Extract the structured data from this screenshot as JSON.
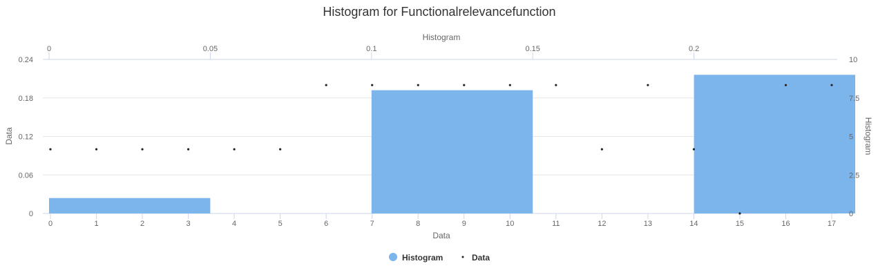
{
  "chart_data": {
    "type": "bar",
    "title": "Histogram for Functionalrelevancefunction",
    "colors": {
      "histogram": "#7cb5ec",
      "data": "#222222",
      "grid": "#e6e6e6",
      "axis": "#ccd6eb"
    },
    "axes": {
      "x_bottom": {
        "label": "Data",
        "range": [
          0,
          17
        ],
        "ticks": [
          "0",
          "1",
          "2",
          "3",
          "4",
          "5",
          "6",
          "7",
          "8",
          "9",
          "10",
          "11",
          "12",
          "13",
          "14",
          "15",
          "16",
          "17"
        ]
      },
      "x_top": {
        "label": "Histogram",
        "range": [
          0,
          0.25
        ],
        "ticks": [
          "0",
          "0.05",
          "0.1",
          "0.15",
          "0.2"
        ]
      },
      "y_left": {
        "label": "Data",
        "range": [
          0,
          0.24
        ],
        "ticks": [
          "0",
          "0.06",
          "0.12",
          "0.18",
          "0.24"
        ]
      },
      "y_right": {
        "label": "Histogram",
        "range": [
          0,
          10
        ],
        "ticks": [
          "0",
          "2.5",
          "5",
          "7.5",
          "10"
        ]
      }
    },
    "series": [
      {
        "name": "Histogram",
        "type": "column",
        "x_axis": "x_top",
        "y_axis": "y_right",
        "bins": [
          {
            "from": 0,
            "to": 0.05,
            "value": 1
          },
          {
            "from": 0.05,
            "to": 0.1,
            "value": 0
          },
          {
            "from": 0.1,
            "to": 0.15,
            "value": 8
          },
          {
            "from": 0.15,
            "to": 0.2,
            "value": 0
          },
          {
            "from": 0.2,
            "to": 0.25,
            "value": 9
          }
        ]
      },
      {
        "name": "Data",
        "type": "scatter",
        "x_axis": "x_bottom",
        "y_axis": "y_left",
        "x": [
          0,
          1,
          2,
          3,
          4,
          5,
          6,
          7,
          8,
          9,
          10,
          11,
          12,
          13,
          14,
          15,
          16,
          17
        ],
        "y": [
          0.1,
          0.1,
          0.1,
          0.1,
          0.1,
          0.1,
          0.2,
          0.2,
          0.2,
          0.2,
          0.2,
          0.2,
          0.1,
          0.2,
          0.1,
          0,
          0.2,
          0.2
        ]
      }
    ],
    "legend": {
      "position": "bottom-center",
      "items": [
        "Histogram",
        "Data"
      ]
    },
    "grid": true
  }
}
